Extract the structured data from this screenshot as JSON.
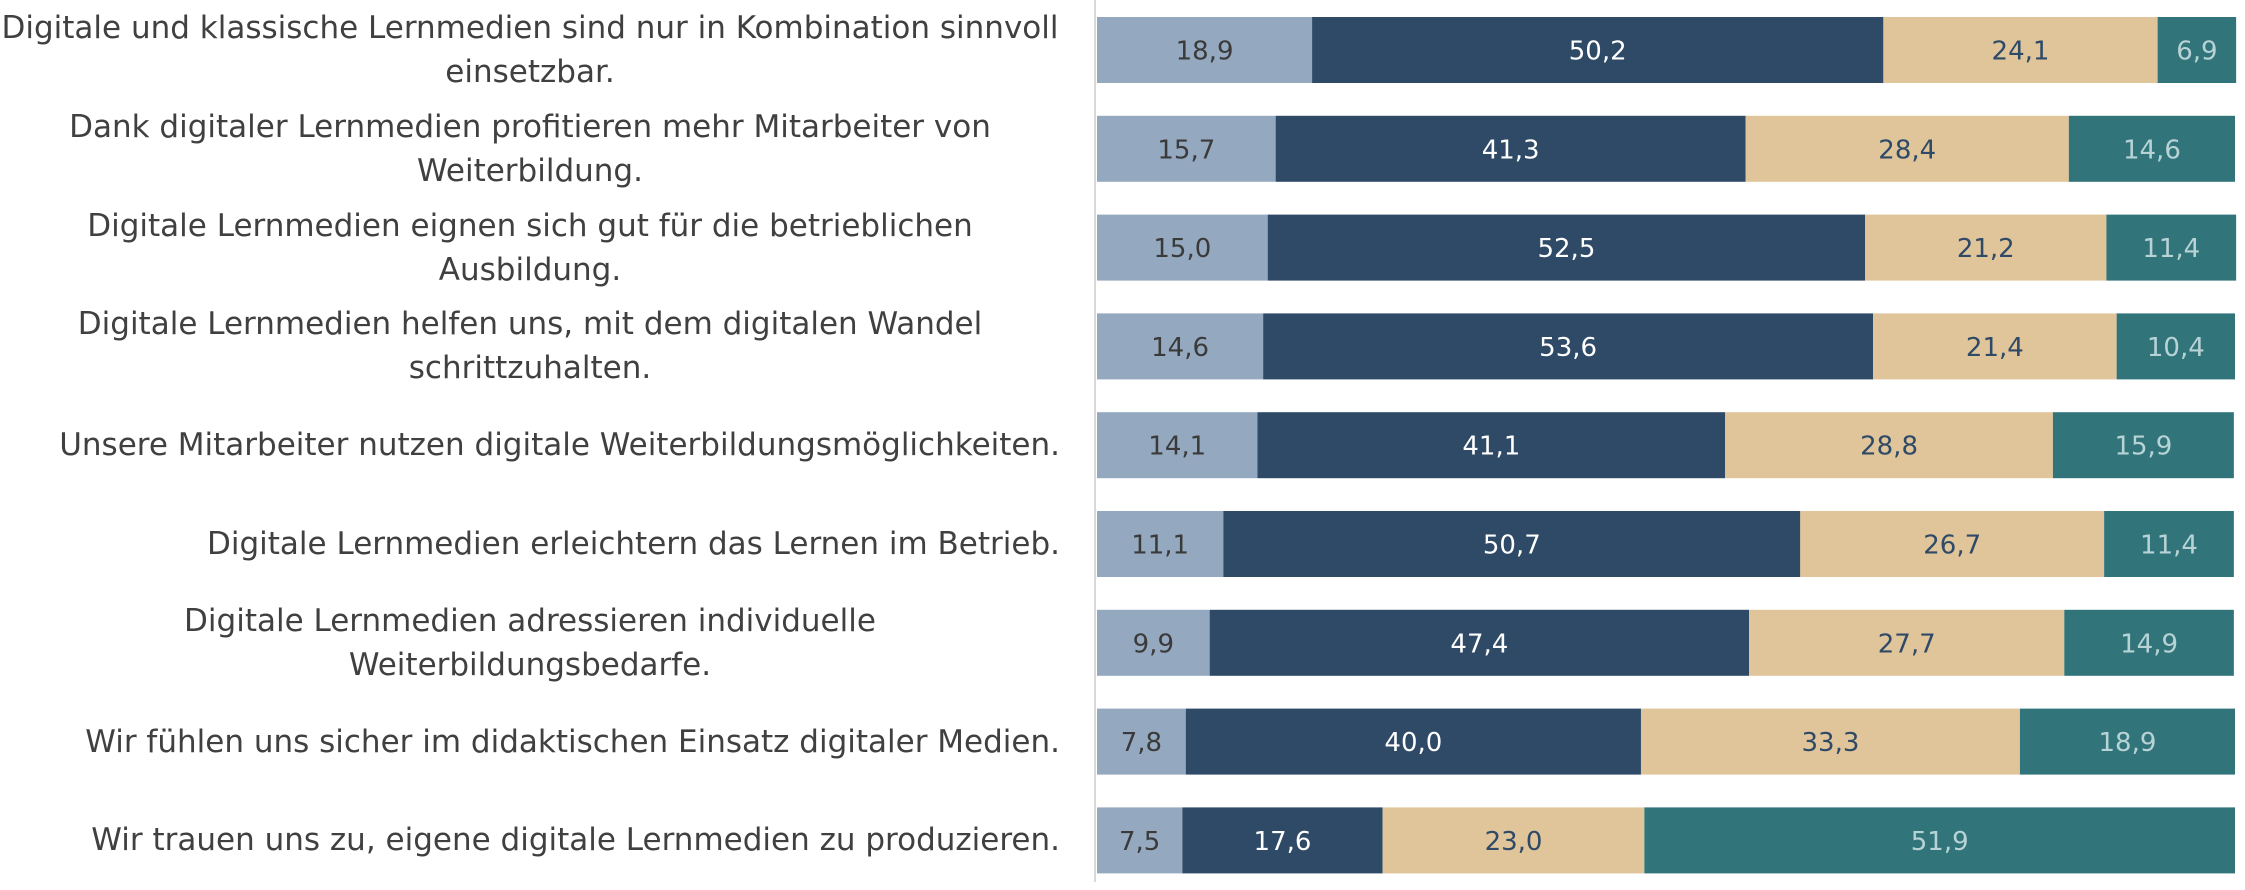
{
  "chart_data": {
    "type": "stacked_barh",
    "categories": [
      "Digitale und klassische Lernmedien sind nur in Kombination sinnvoll einsetzbar.",
      "Dank digitaler Lernmedien profitieren mehr Mitarbeiter von Weiterbildung.",
      "Digitale Lernmedien eignen sich gut für die betrieblichen Ausbildung.",
      "Digitale Lernmedien helfen uns, mit dem digitalen Wandel schrittzuhalten.",
      "Unsere Mitarbeiter nutzen digitale Weiterbildungsmöglichkeiten.",
      "Digitale Lernmedien erleichtern das Lernen im Betrieb.",
      "Digitale Lernmedien adressieren individuelle Weiterbildungsbedarfe.",
      "Wir fühlen uns sicher im didaktischen Einsatz digitaler Medien.",
      "Wir trauen uns zu, eigene digitale Lernmedien zu produzieren."
    ],
    "series": [
      {
        "color": "#94a9bf",
        "label_color": "#3a3a3a",
        "values": [
          18.9,
          15.7,
          15.0,
          14.6,
          14.1,
          11.1,
          9.9,
          7.8,
          7.5
        ],
        "value_labels": [
          "18,9",
          "15,7",
          "15,0",
          "14,6",
          "14,1",
          "11,1",
          "9,9",
          "7,8",
          "7,5"
        ]
      },
      {
        "color": "#2e4a67",
        "label_color": "#ffffff",
        "values": [
          50.2,
          41.3,
          52.5,
          53.6,
          41.1,
          50.7,
          47.4,
          40.0,
          17.6
        ],
        "value_labels": [
          "50,2",
          "41,3",
          "52,5",
          "53,6",
          "41,1",
          "50,7",
          "47,4",
          "40,0",
          "17,6"
        ]
      },
      {
        "color": "#e0c49a",
        "label_color": "#2e4a67",
        "values": [
          24.1,
          28.4,
          21.2,
          21.4,
          28.8,
          26.7,
          27.7,
          33.3,
          23.0
        ],
        "value_labels": [
          "24,1",
          "28,4",
          "21,2",
          "21,4",
          "28,8",
          "26,7",
          "27,7",
          "33,3",
          "23,0"
        ]
      },
      {
        "color": "#31757b",
        "label_color": "#b8d3d6",
        "values": [
          6.9,
          14.6,
          11.4,
          10.4,
          15.9,
          11.4,
          14.9,
          18.9,
          51.9
        ],
        "value_labels": [
          "6,9",
          "14,6",
          "11,4",
          "10,4",
          "15,9",
          "11,4",
          "14,9",
          "18,9",
          "51,9"
        ]
      }
    ],
    "xlim": [
      0,
      100
    ]
  }
}
